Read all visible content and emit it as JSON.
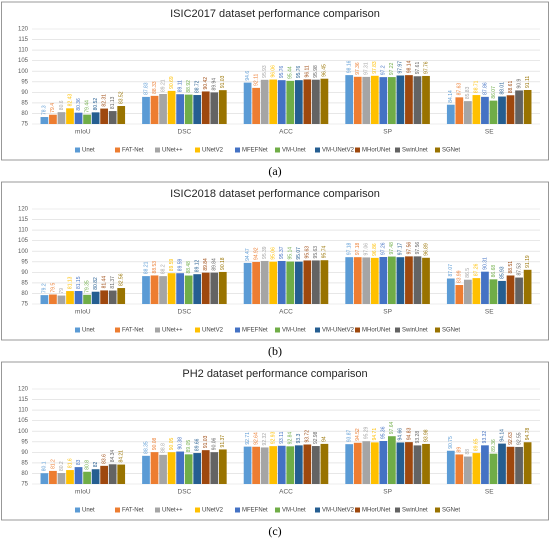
{
  "chart_data": [
    {
      "type": "bar",
      "title": "ISIC2017 dataset performance comparison",
      "caption": "(a)",
      "categories": [
        "mIoU",
        "DSC",
        "ACC",
        "SP",
        "SE"
      ],
      "ylim": [
        75,
        120
      ],
      "yticks": [
        75,
        80,
        85,
        90,
        95,
        100,
        105,
        110,
        115,
        120
      ],
      "grid": true,
      "series": [
        {
          "name": "Unet",
          "color": "#5b9bd5",
          "values": [
            78.3,
            87.83,
            94.6,
            98.16,
            84.14
          ]
        },
        {
          "name": "FAT-Net",
          "color": "#ed7d31",
          "values": [
            79.4,
            88.33,
            92.11,
            97.36,
            87.63
          ]
        },
        {
          "name": "UNet++",
          "color": "#a5a5a5",
          "values": [
            80.6,
            89.21,
            95.93,
            97.31,
            85.83
          ]
        },
        {
          "name": "UNetV2",
          "color": "#ffc000",
          "values": [
            82.43,
            90.69,
            96.06,
            97.83,
            88.71
          ]
        },
        {
          "name": "MFEFNet",
          "color": "#4472c4",
          "values": [
            80.36,
            89.11,
            95.76,
            97.2,
            87.86
          ]
        },
        {
          "name": "VM-Unet",
          "color": "#70ad47",
          "values": [
            79.44,
            88.92,
            95.44,
            97.22,
            86.07
          ]
        },
        {
          "name": "VM-UNetV2",
          "color": "#255e91",
          "values": [
            80.52,
            88.72,
            95.76,
            97.97,
            88.01
          ]
        },
        {
          "name": "MHorUNet",
          "color": "#9e480e",
          "values": [
            82.31,
            90.42,
            96.11,
            98.14,
            88.61
          ]
        },
        {
          "name": "SwinUnet",
          "color": "#636363",
          "values": [
            81.13,
            89.94,
            95.98,
            97.61,
            90.9
          ]
        },
        {
          "name": "SGNet",
          "color": "#997300",
          "values": [
            83.52,
            91.03,
            96.45,
            97.76,
            91.11
          ]
        }
      ]
    },
    {
      "type": "bar",
      "title": "ISIC2018 dataset performance comparison",
      "caption": "(b)",
      "categories": [
        "mIoU",
        "DSC",
        "ACC",
        "SP",
        "SE"
      ],
      "ylim": [
        75,
        120
      ],
      "yticks": [
        75,
        80,
        85,
        90,
        95,
        100,
        105,
        110,
        115,
        120
      ],
      "grid": true,
      "series": [
        {
          "name": "Unet",
          "color": "#5b9bd5",
          "values": [
            79.2,
            88.21,
            94.47,
            97.18,
            87.07
          ]
        },
        {
          "name": "FAT-Net",
          "color": "#ed7d31",
          "values": [
            79.5,
            88.53,
            94.92,
            97.18,
            83.99
          ]
        },
        {
          "name": "UNet++",
          "color": "#a5a5a5",
          "values": [
            79.0,
            88.2,
            95.39,
            97.06,
            86.5
          ]
        },
        {
          "name": "UNetV2",
          "color": "#ffc000",
          "values": [
            81.13,
            89.59,
            95.06,
            96.86,
            87.26
          ]
        },
        {
          "name": "MFEFNet",
          "color": "#4472c4",
          "values": [
            81.15,
            89.59,
            95.37,
            97.26,
            90.31
          ]
        },
        {
          "name": "VM-Unet",
          "color": "#70ad47",
          "values": [
            79.35,
            88.48,
            95.14,
            97.48,
            86.68
          ]
        },
        {
          "name": "VM-UNetV2",
          "color": "#255e91",
          "values": [
            80.82,
            89.12,
            95.07,
            97.17,
            85.93
          ]
        },
        {
          "name": "MHorUNet",
          "color": "#9e480e",
          "values": [
            81.44,
            89.84,
            95.63,
            97.56,
            88.51
          ]
        },
        {
          "name": "SwinUnet",
          "color": "#636363",
          "values": [
            81.37,
            89.84,
            95.63,
            97.56,
            87.53
          ]
        },
        {
          "name": "SGNet",
          "color": "#997300",
          "values": [
            82.56,
            90.18,
            95.74,
            96.89,
            91.19
          ]
        }
      ]
    },
    {
      "type": "bar",
      "title": "PH2 dataset performance comparison",
      "caption": "(c)",
      "categories": [
        "mIoU",
        "DSC",
        "ACC",
        "SP",
        "SE"
      ],
      "ylim": [
        75,
        120
      ],
      "yticks": [
        75,
        80,
        85,
        90,
        95,
        100,
        105,
        110,
        115,
        120
      ],
      "grid": true,
      "series": [
        {
          "name": "Unet",
          "color": "#5b9bd5",
          "values": [
            80.1,
            88.35,
            92.71,
            93.87,
            90.75
          ]
        },
        {
          "name": "FAT-Net",
          "color": "#ed7d31",
          "values": [
            81.2,
            90.08,
            92.64,
            94.52,
            89.0
          ]
        },
        {
          "name": "UNet++",
          "color": "#a5a5a5",
          "values": [
            80.2,
            88.8,
            92.32,
            95.29,
            88.0
          ]
        },
        {
          "name": "UNetV2",
          "color": "#ffc000",
          "values": [
            81.6,
            90.05,
            92.93,
            94.71,
            89.65
          ]
        },
        {
          "name": "MFEFNet",
          "color": "#4472c4",
          "values": [
            83.0,
            90.38,
            93.11,
            95.36,
            93.32
          ]
        },
        {
          "name": "VM-Unet",
          "color": "#70ad47",
          "values": [
            80.8,
            89.05,
            92.84,
            97.64,
            89.36
          ]
        },
        {
          "name": "VM-UNetV2",
          "color": "#255e91",
          "values": [
            82,
            89.66,
            93.3,
            94.66,
            94.14
          ]
        },
        {
          "name": "MHorUNet",
          "color": "#9e480e",
          "values": [
            83.6,
            91.03,
            93.72,
            94.83,
            92.63
          ]
        },
        {
          "name": "SwinUnet",
          "color": "#636363",
          "values": [
            84.34,
            90.06,
            92.98,
            93.28,
            92.55
          ]
        },
        {
          "name": "SGNet",
          "color": "#997300",
          "values": [
            84.21,
            91.37,
            94.0,
            93.98,
            94.78
          ]
        }
      ]
    }
  ]
}
